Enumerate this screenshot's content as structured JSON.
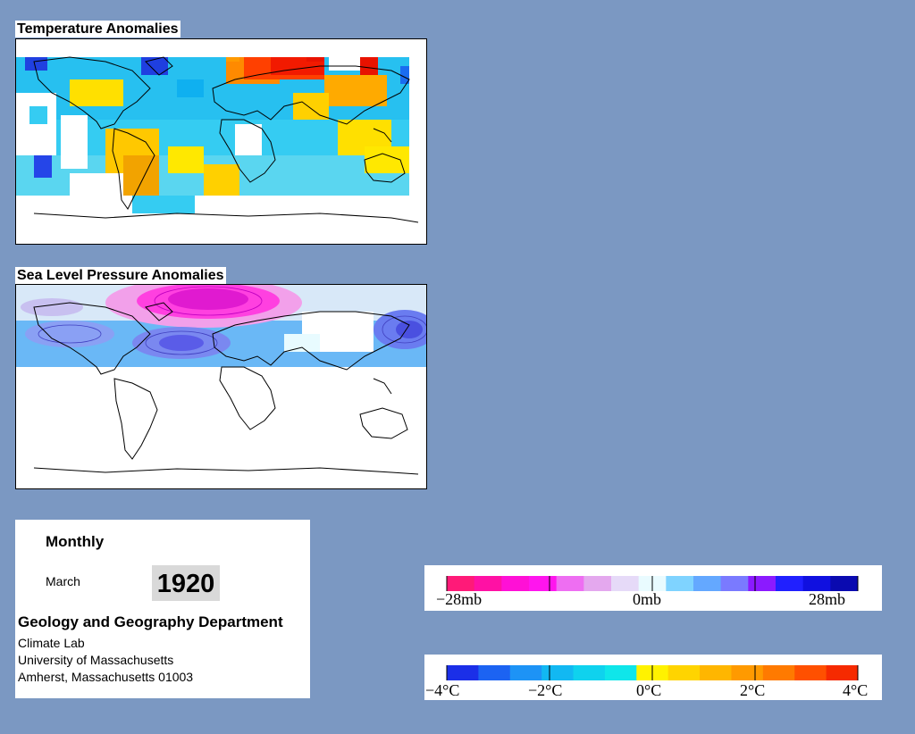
{
  "temperature_panel": {
    "title": "Temperature Anomalies"
  },
  "pressure_panel": {
    "title": "Sea Level Pressure Anomalies"
  },
  "info": {
    "frequency": "Monthly",
    "month": "March",
    "year": "1920",
    "department": "Geology and Geography Department",
    "lab": "Climate Lab",
    "university": "University of Massachusetts",
    "address": "Amherst, Massachusetts 01003"
  },
  "pressure_legend": {
    "colors": [
      "#ff1a78",
      "#ff11a4",
      "#ff10d6",
      "#ff15ee",
      "#ee6ef2",
      "#e4a8ee",
      "#e6daf8",
      "#e9fbff",
      "#7fd3ff",
      "#64a8ff",
      "#7a7aff",
      "#8b1aff",
      "#2020ff",
      "#1010e0",
      "#0a0ab0"
    ],
    "labels": [
      "−28mb",
      "0mb",
      "28mb"
    ]
  },
  "temperature_legend": {
    "colors": [
      "#1b2fe8",
      "#1c63f2",
      "#1d93f6",
      "#12b8f2",
      "#0fd2ee",
      "#0fe6ea",
      "#fff200",
      "#ffd400",
      "#ffb600",
      "#ff9a00",
      "#ff7a00",
      "#ff5000",
      "#f62a00"
    ],
    "labels": [
      "−4°C",
      "−2°C",
      "0°C",
      "2°C",
      "4°C"
    ]
  },
  "colors": {
    "background": "#7b98c2",
    "warm_anomaly": "#ff3a00",
    "cold_anomaly": "#1a3fe0",
    "high_pressure": "#ff10d6",
    "low_pressure": "#5a6cf0"
  }
}
